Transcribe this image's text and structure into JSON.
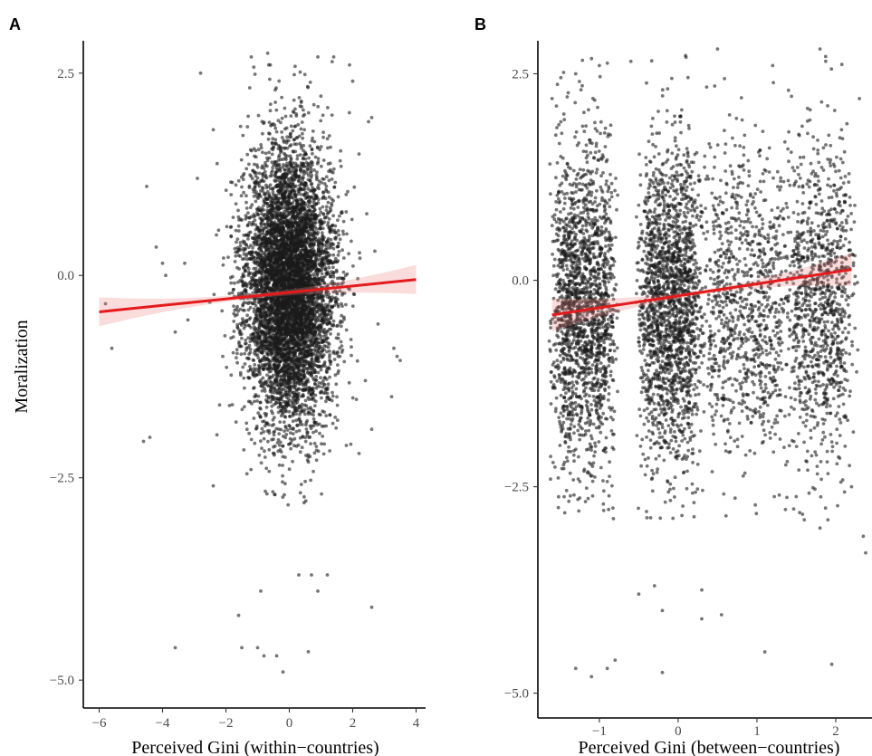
{
  "chart_data": [
    {
      "panel": "A",
      "type": "scatter",
      "xlabel": "Perceived Gini (within−countries)",
      "ylabel": "Moralization",
      "xlim": [
        -6.5,
        4.3
      ],
      "ylim": [
        -5.3,
        2.9
      ],
      "xticks": [
        {
          "value": -6,
          "label": "−6"
        },
        {
          "value": -4,
          "label": "−4"
        },
        {
          "value": -2,
          "label": "−2"
        },
        {
          "value": 0,
          "label": "0"
        },
        {
          "value": 2,
          "label": "2"
        },
        {
          "value": 4,
          "label": "4"
        }
      ],
      "yticks": [
        {
          "value": 2.5,
          "label": "2.5"
        },
        {
          "value": 0.0,
          "label": "0.0"
        },
        {
          "value": -2.5,
          "label": "−2.5"
        },
        {
          "value": -5.0,
          "label": "−5.0"
        }
      ],
      "fit": {
        "x0": -6.0,
        "x1": 4.0,
        "y0": -0.45,
        "y1": -0.05,
        "ci_half_width_at_ends": 0.18,
        "ci_half_width_center": 0.03
      },
      "points": {
        "n_dense": 6500,
        "dense_x_mean": 0.0,
        "dense_x_sd": 0.7,
        "dense_y_mean": -0.15,
        "dense_y_sd": 0.85,
        "outliers": [
          [
            -4.2,
            0.35
          ],
          [
            -4.0,
            0.15
          ],
          [
            -4.5,
            1.1
          ],
          [
            -3.9,
            0.0
          ],
          [
            -4.4,
            -2.0
          ],
          [
            -4.6,
            -2.05
          ],
          [
            -5.6,
            -0.9
          ],
          [
            -5.8,
            -0.35
          ],
          [
            -3.3,
            0.15
          ],
          [
            -3.2,
            -0.55
          ],
          [
            -3.6,
            -0.7
          ],
          [
            -2.8,
            2.5
          ],
          [
            -2.4,
            1.8
          ],
          [
            -2.9,
            1.2
          ],
          [
            -2.3,
            0.5
          ],
          [
            -2.1,
            -1.0
          ],
          [
            -2.2,
            -1.6
          ],
          [
            -2.4,
            -2.6
          ],
          [
            -3.6,
            -4.6
          ],
          [
            -1.6,
            -4.2
          ],
          [
            -1.5,
            -4.6
          ],
          [
            -1.0,
            -4.6
          ],
          [
            -0.8,
            -4.7
          ],
          [
            -0.4,
            -4.7
          ],
          [
            -0.2,
            -4.9
          ],
          [
            0.6,
            -4.65
          ],
          [
            -0.9,
            -3.9
          ],
          [
            0.9,
            -3.9
          ],
          [
            0.3,
            -3.7
          ],
          [
            0.7,
            -3.7
          ],
          [
            1.2,
            -3.7
          ],
          [
            2.6,
            -4.1
          ],
          [
            1.5,
            -1.5
          ],
          [
            1.8,
            -2.1
          ],
          [
            2.2,
            -2.2
          ],
          [
            2.6,
            -1.9
          ],
          [
            2.4,
            -1.3
          ],
          [
            3.4,
            -1.0
          ],
          [
            3.5,
            -1.05
          ],
          [
            3.3,
            -0.9
          ],
          [
            2.7,
            0.3
          ],
          [
            2.8,
            -0.6
          ],
          [
            2.2,
            1.5
          ],
          [
            2.5,
            1.9
          ],
          [
            2.0,
            2.4
          ],
          [
            2.6,
            1.95
          ],
          [
            1.9,
            2.6
          ],
          [
            1.4,
            2.7
          ],
          [
            0.9,
            2.7
          ],
          [
            -1.2,
            2.7
          ],
          [
            -0.6,
            2.6
          ]
        ]
      }
    },
    {
      "panel": "B",
      "type": "scatter",
      "xlabel": "Perceived Gini (between−countries)",
      "ylabel": "",
      "xlim": [
        -1.78,
        2.46
      ],
      "ylim": [
        -5.3,
        2.9
      ],
      "xticks": [
        {
          "value": -1,
          "label": "−1"
        },
        {
          "value": 0,
          "label": "0"
        },
        {
          "value": 1,
          "label": "1"
        },
        {
          "value": 2,
          "label": "2"
        }
      ],
      "yticks": [
        {
          "value": 2.5,
          "label": "2.5"
        },
        {
          "value": 0.0,
          "label": "0.0"
        },
        {
          "value": -2.5,
          "label": "−2.5"
        },
        {
          "value": -5.0,
          "label": "−5.0"
        }
      ],
      "fit": {
        "x0": -1.6,
        "x1": 2.2,
        "y0": -0.42,
        "y1": 0.13,
        "ci_half_width_at_ends": 0.2,
        "ci_half_width_center": 0.03
      },
      "points": {
        "n_dense": 5800,
        "clusters": [
          {
            "x": -1.2,
            "x_spread": 0.45,
            "weight": 0.33
          },
          {
            "x": -0.1,
            "x_spread": 0.45,
            "weight": 0.33
          },
          {
            "x": 0.85,
            "x_spread": 0.6,
            "weight": 0.16
          },
          {
            "x": 1.8,
            "x_spread": 0.5,
            "weight": 0.18
          }
        ],
        "dense_y_mean": -0.3,
        "dense_y_sd": 0.95,
        "outliers": [
          [
            -1.3,
            -4.7
          ],
          [
            -1.1,
            -4.8
          ],
          [
            -0.8,
            -4.6
          ],
          [
            -0.9,
            -4.7
          ],
          [
            -0.2,
            -4.75
          ],
          [
            1.1,
            -4.5
          ],
          [
            1.95,
            -4.65
          ],
          [
            0.3,
            -4.1
          ],
          [
            0.55,
            -4.05
          ],
          [
            -0.3,
            -3.7
          ],
          [
            -0.5,
            -3.8
          ],
          [
            0.3,
            -3.75
          ],
          [
            -0.2,
            -4.0
          ],
          [
            2.35,
            -3.1
          ],
          [
            2.38,
            -3.3
          ],
          [
            1.6,
            -2.9
          ],
          [
            1.8,
            -3.0
          ],
          [
            1.9,
            -2.9
          ],
          [
            2.2,
            -2.5
          ],
          [
            -1.5,
            -2.0
          ],
          [
            -1.3,
            2.5
          ],
          [
            -1.0,
            2.6
          ],
          [
            -0.6,
            2.65
          ],
          [
            0.1,
            2.7
          ],
          [
            0.5,
            2.8
          ],
          [
            1.2,
            2.6
          ],
          [
            1.8,
            2.8
          ],
          [
            2.3,
            2.2
          ],
          [
            -1.6,
            2.2
          ],
          [
            1.4,
            2.3
          ],
          [
            2.45,
            0.3
          ]
        ]
      }
    }
  ]
}
